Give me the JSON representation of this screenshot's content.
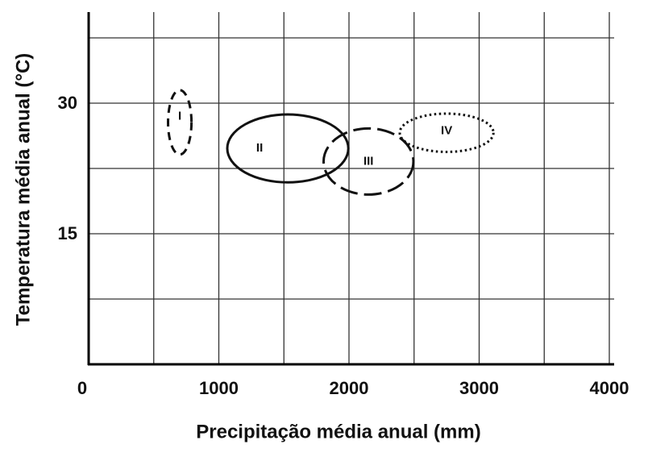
{
  "chart_data": {
    "type": "ellipse",
    "xlabel": "Precipitação média anual (mm)",
    "ylabel": "Temperatura média anual (°C)",
    "xlim": [
      0,
      4000
    ],
    "ylim": [
      0,
      40
    ],
    "xticks": [
      0,
      1000,
      2000,
      3000,
      4000
    ],
    "yticks": [
      15,
      30
    ],
    "xgrid": [
      500,
      1000,
      1500,
      2000,
      2500,
      3000,
      3500,
      4000
    ],
    "ygrid": [
      7.5,
      15,
      22.5,
      30,
      37.5
    ],
    "grid": true,
    "series": [
      {
        "name": "I",
        "color": "#111111",
        "dash": "dashed",
        "x": 700,
        "y": 27.8,
        "rx": 90,
        "ry": 3.7
      },
      {
        "name": "II",
        "color": "#111111",
        "dash": "solid",
        "x": 1530,
        "y": 24.8,
        "rx": 465,
        "ry": 3.9
      },
      {
        "name": "III",
        "color": "#111111",
        "dash": "longdash",
        "x": 2150,
        "y": 23.3,
        "rx": 345,
        "ry": 3.8
      },
      {
        "name": "IV",
        "color": "#111111",
        "dash": "dotted",
        "x": 2750,
        "y": 26.6,
        "rx": 360,
        "ry": 2.2
      }
    ]
  }
}
